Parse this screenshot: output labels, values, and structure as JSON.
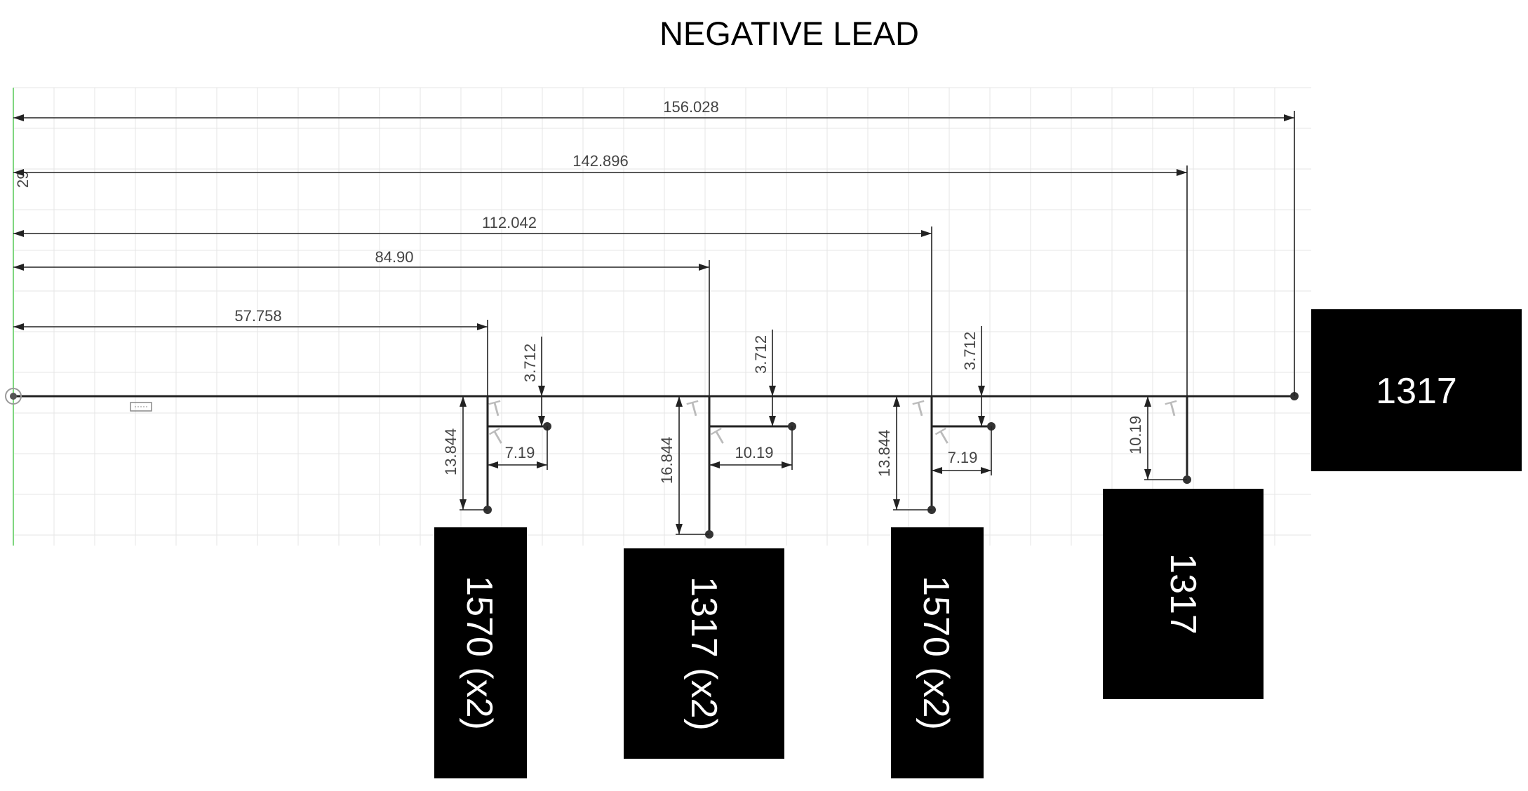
{
  "title": "NEGATIVE LEAD",
  "colors": {
    "box": "#000000",
    "box_text": "#ffffff",
    "line": "#222222",
    "grid": "#e6e6e6",
    "axis_green": "#7fd67f",
    "dim_text": "#444444"
  },
  "dimensions": {
    "overall": [
      "156.028",
      "142.896",
      "112.042",
      "84.90",
      "57.758"
    ],
    "vertical_offset": [
      "3.712",
      "3.712",
      "3.712"
    ],
    "branch_length": [
      "13.844",
      "16.844",
      "13.844",
      "10.19"
    ],
    "branch_offset": [
      "7.19",
      "10.19",
      "7.19"
    ],
    "edge_label": "29"
  },
  "components": [
    "1317",
    "1570 (x2)",
    "1317 (x2)",
    "1570 (x2)",
    "1317"
  ]
}
